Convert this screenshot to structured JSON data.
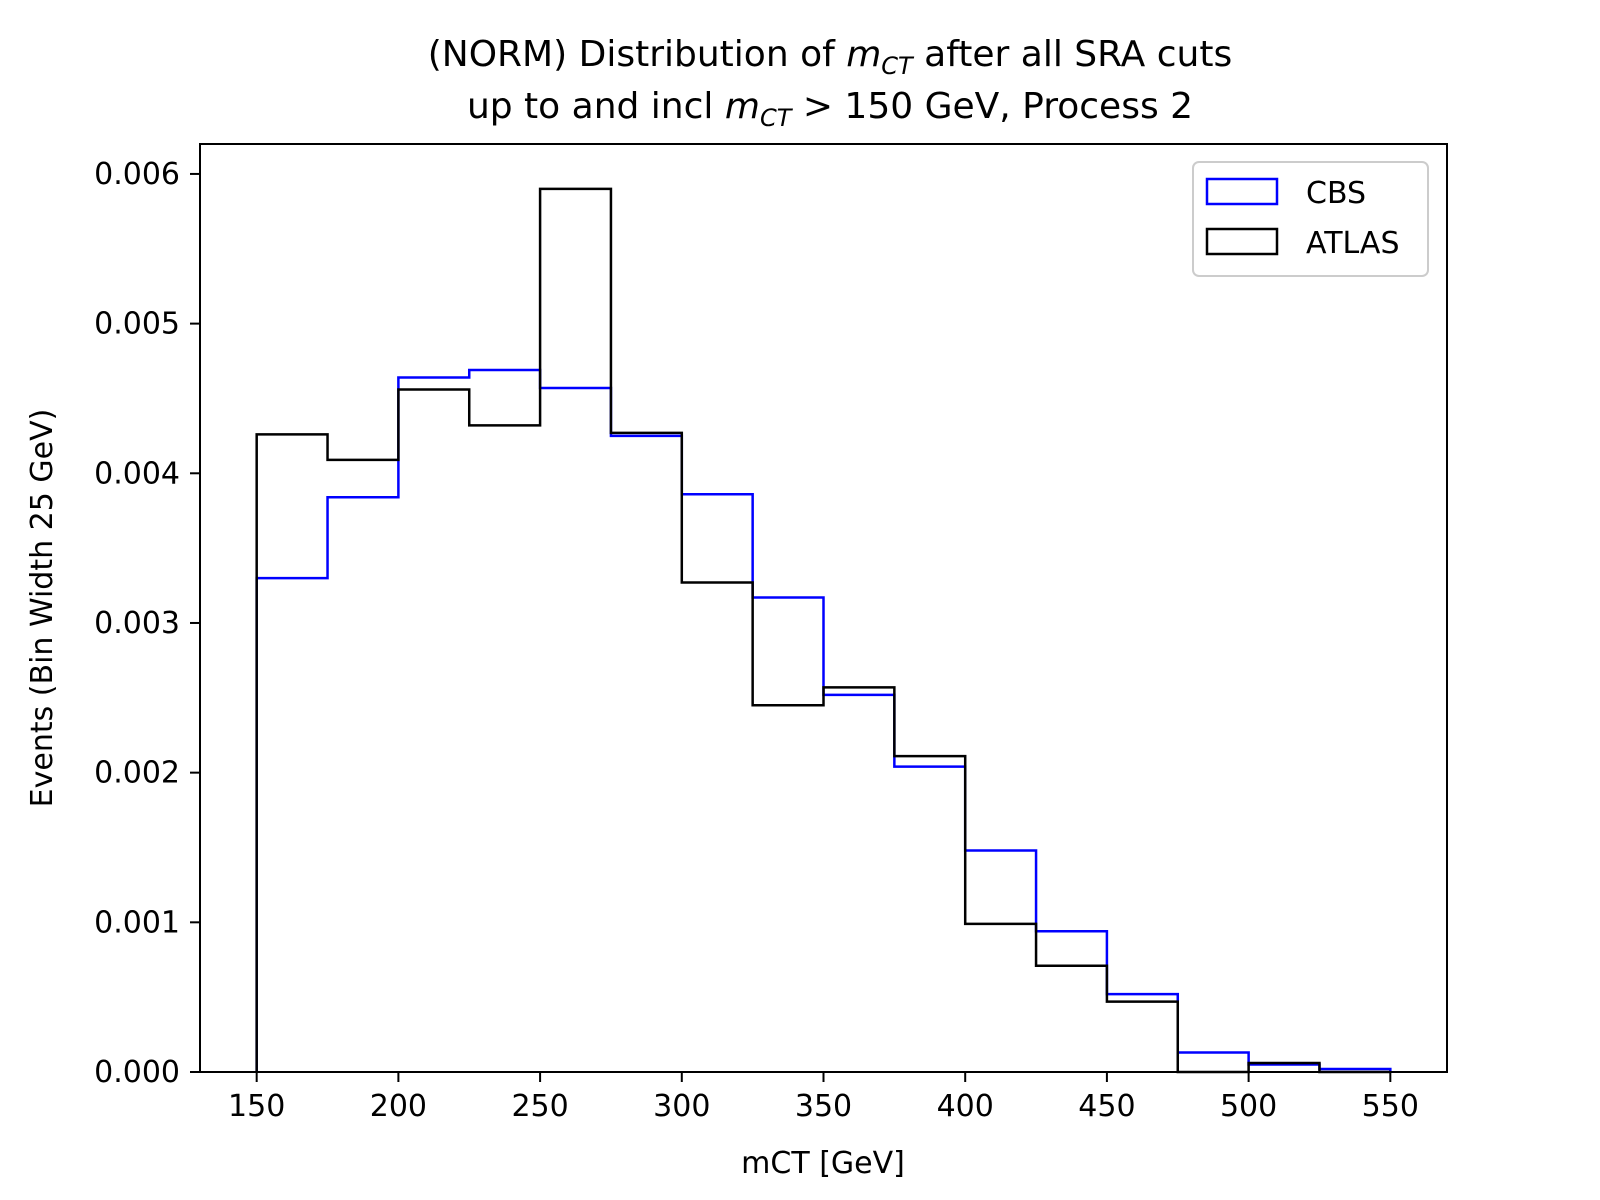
{
  "chart_data": {
    "type": "histogram-step",
    "title_line1_pre": "(NORM) Distribution of ",
    "title_line1_var": "m",
    "title_line1_sub": "CT",
    "title_line1_post": " after all SRA cuts",
    "title_line2_pre": "up to and incl ",
    "title_line2_var": "m",
    "title_line2_sub": "CT",
    "title_line2_post": " > 150 GeV, Process 2",
    "xlabel": "mCT [GeV]",
    "ylabel": "Events (Bin Width 25 GeV)",
    "xlim": [
      130,
      570
    ],
    "ylim": [
      0,
      0.0062
    ],
    "x_ticks": [
      150,
      200,
      250,
      300,
      350,
      400,
      450,
      500,
      550
    ],
    "y_ticks": [
      0.0,
      0.001,
      0.002,
      0.003,
      0.004,
      0.005,
      0.006
    ],
    "y_tick_labels": [
      "0.000",
      "0.001",
      "0.002",
      "0.003",
      "0.004",
      "0.005",
      "0.006"
    ],
    "bin_edges": [
      150,
      175,
      200,
      225,
      250,
      275,
      300,
      325,
      350,
      375,
      400,
      425,
      450,
      475,
      500,
      525,
      550
    ],
    "legend_position": "top-right",
    "series": [
      {
        "name": "CBS",
        "color": "#0000ff",
        "values": [
          0.0033,
          0.00384,
          0.00464,
          0.00469,
          0.00457,
          0.00425,
          0.00386,
          0.00317,
          0.00252,
          0.00204,
          0.00148,
          0.00094,
          0.00052,
          0.00013,
          5e-05,
          2e-05
        ]
      },
      {
        "name": "ATLAS",
        "color": "#000000",
        "values": [
          0.00426,
          0.00409,
          0.00456,
          0.00432,
          0.0059,
          0.00427,
          0.00327,
          0.00245,
          0.00257,
          0.00211,
          0.00099,
          0.00071,
          0.00047,
          0.0,
          6e-05,
          0.0
        ]
      }
    ]
  }
}
